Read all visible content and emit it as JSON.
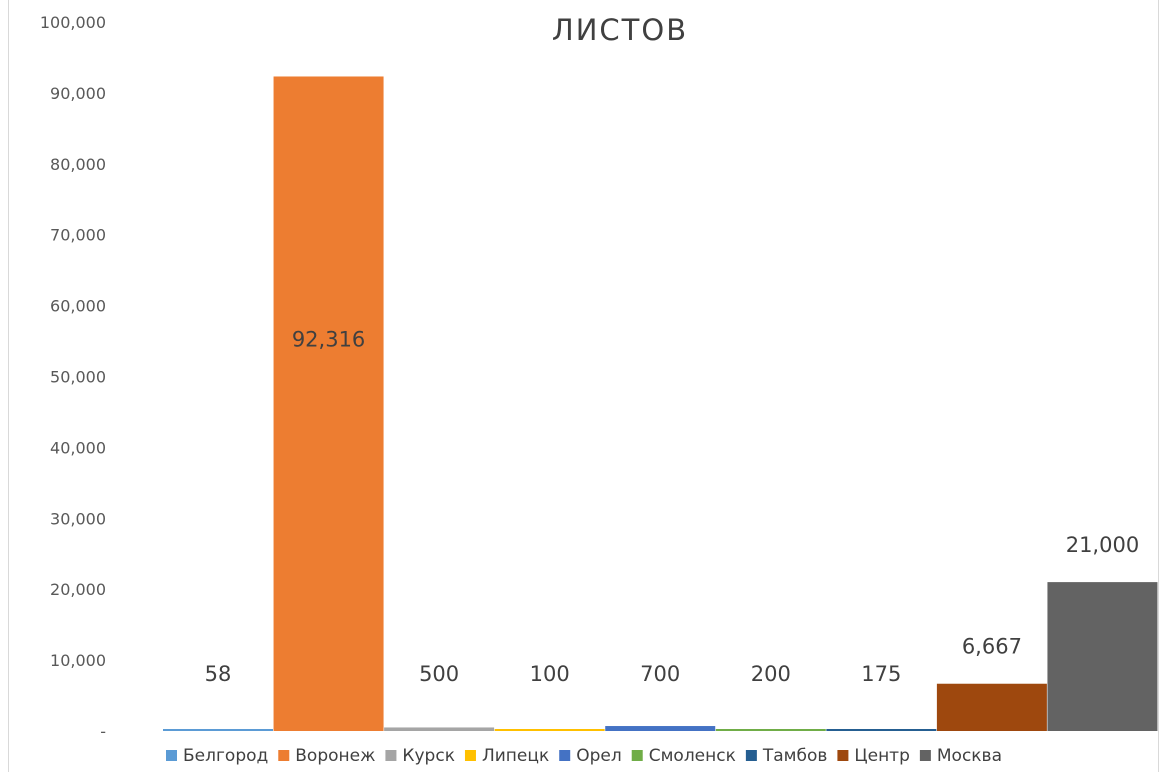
{
  "chart_data": {
    "type": "bar",
    "title": "ЛИСТОВ",
    "xlabel": "",
    "ylabel": "",
    "ylim": [
      0,
      100000
    ],
    "yticks": [
      "-",
      "10,000",
      "20,000",
      "30,000",
      "40,000",
      "50,000",
      "60,000",
      "70,000",
      "80,000",
      "90,000",
      "100,000"
    ],
    "grid": false,
    "legend_position": "bottom",
    "series": [
      {
        "name": "Белгород",
        "value": 58,
        "label": "58",
        "color": "#5B9BD5"
      },
      {
        "name": "Воронеж",
        "value": 92316,
        "label": "92,316",
        "color": "#ED7D31"
      },
      {
        "name": "Курск",
        "value": 500,
        "label": "500",
        "color": "#A5A5A5"
      },
      {
        "name": "Липецк",
        "value": 100,
        "label": "100",
        "color": "#FFC000"
      },
      {
        "name": "Орел",
        "value": 700,
        "label": "700",
        "color": "#4472C4"
      },
      {
        "name": "Смоленск",
        "value": 200,
        "label": "200",
        "color": "#70AD47"
      },
      {
        "name": "Тамбов",
        "value": 175,
        "label": "175",
        "color": "#255E91"
      },
      {
        "name": "Центр",
        "value": 6667,
        "label": "6,667",
        "color": "#9E480E"
      },
      {
        "name": "Москва",
        "value": 21000,
        "label": "21,000",
        "color": "#636363"
      }
    ]
  }
}
